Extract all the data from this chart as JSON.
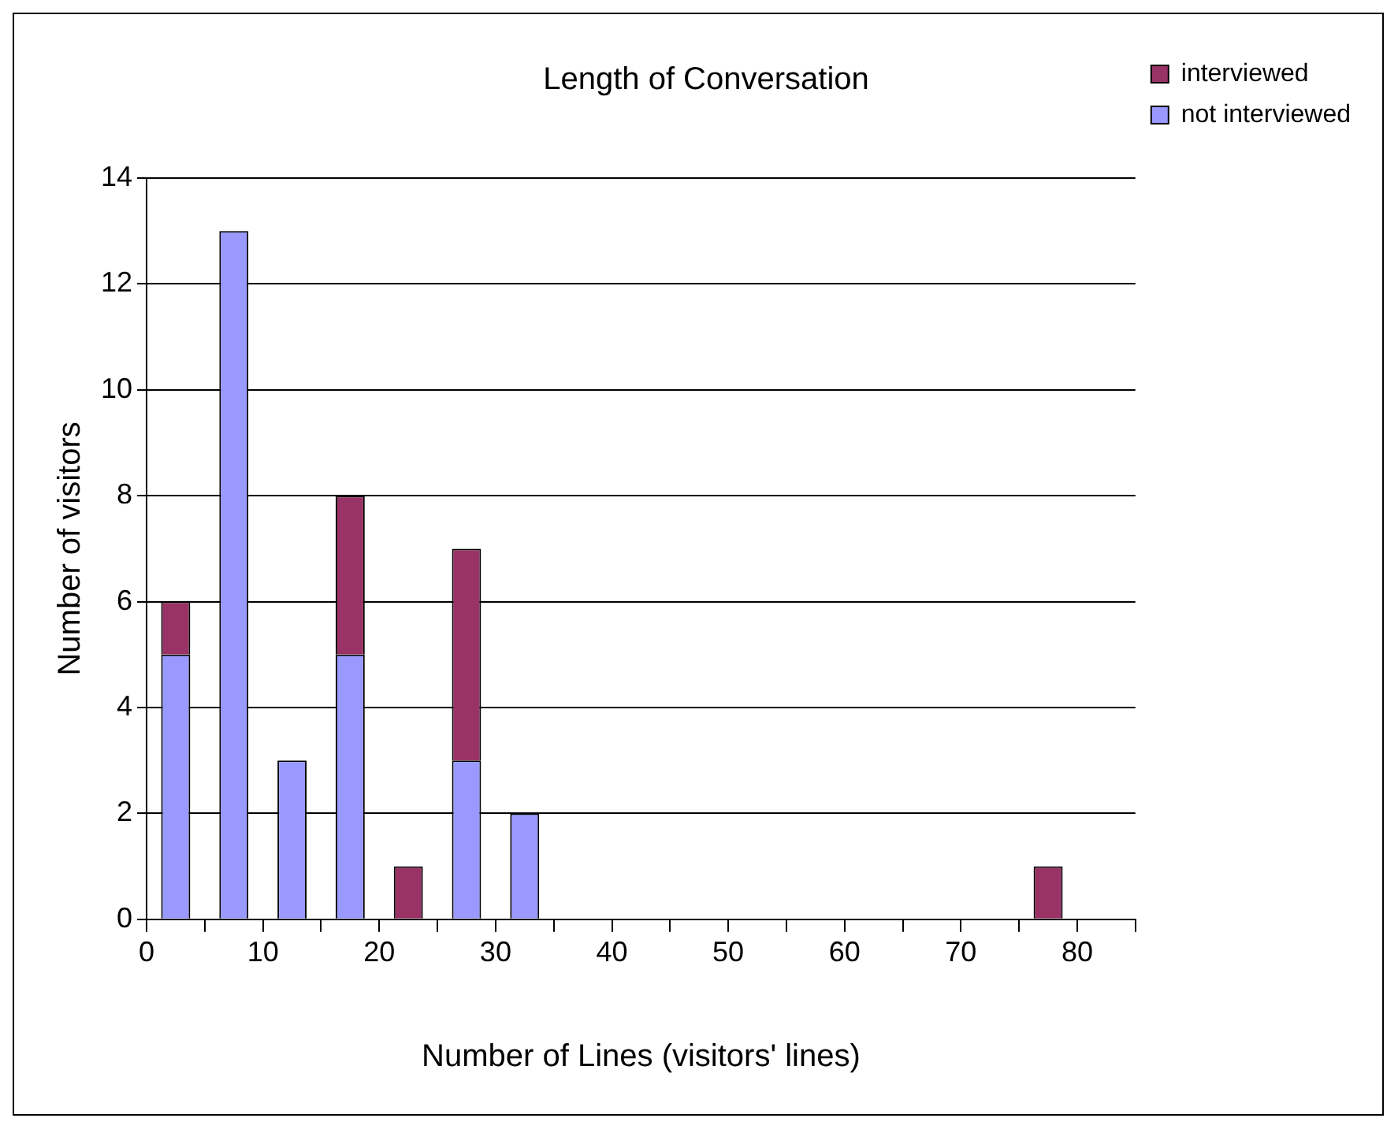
{
  "chart_data": {
    "type": "bar",
    "title": "Length of Conversation",
    "xlabel": "Number of Lines (visitors' lines)",
    "ylabel": "Number of visitors",
    "stacked": true,
    "x": [
      2.5,
      7.5,
      12.5,
      17.5,
      22.5,
      27.5,
      32.5,
      37.5,
      42.5,
      47.5,
      52.5,
      57.5,
      62.5,
      67.5,
      72.5,
      77.5
    ],
    "series": [
      {
        "name": "not interviewed",
        "color": "#9999ff",
        "values": [
          5,
          13,
          3,
          5,
          null,
          3,
          2,
          null,
          null,
          null,
          null,
          null,
          null,
          null,
          null,
          null
        ]
      },
      {
        "name": "interviewed",
        "color": "#993366",
        "values": [
          1,
          null,
          null,
          3,
          1,
          4,
          null,
          null,
          null,
          null,
          null,
          null,
          null,
          null,
          null,
          1
        ]
      }
    ],
    "xlim": [
      0,
      85
    ],
    "xticks": [
      0,
      {
        "value": 5,
        "label": null
      },
      10,
      {
        "value": 15,
        "label": null
      },
      20,
      {
        "value": 25,
        "label": null
      },
      30,
      {
        "value": 35,
        "label": null
      },
      40,
      {
        "value": 45,
        "label": null
      },
      50,
      {
        "value": 55,
        "label": null
      },
      60,
      {
        "value": 65,
        "label": null
      },
      70,
      {
        "value": 75,
        "label": null
      },
      80,
      {
        "value": 85,
        "label": null
      }
    ],
    "ylim": [
      0,
      14
    ],
    "yticks": [
      0,
      2,
      4,
      6,
      8,
      10,
      12,
      14
    ],
    "grid": "y",
    "legend": "top right"
  }
}
